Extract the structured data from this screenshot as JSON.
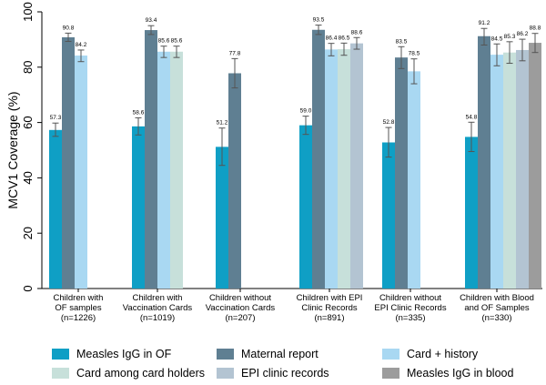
{
  "chart_data": {
    "type": "bar",
    "ylabel": "MCV1 Coverage (%)",
    "ylim": [
      0,
      100
    ],
    "yticks": [
      0,
      20,
      40,
      60,
      80,
      100
    ],
    "categories": [
      [
        "Children with",
        "OF samples",
        "(n=1226)"
      ],
      [
        "Children with",
        "Vaccination Cards",
        "(n=1019)"
      ],
      [
        "Children without",
        "Vaccination Cards",
        "(n=207)"
      ],
      [
        "Children with EPI",
        "Clinic Records",
        "(n=891)"
      ],
      [
        "Children without",
        "EPI Clinic Records",
        "(n=335)"
      ],
      [
        "Children with Blood",
        "and OF Samples",
        "(n=330)"
      ]
    ],
    "series": [
      {
        "name": "Measles IgG in OF",
        "color": "#0f9fc5"
      },
      {
        "name": "Maternal report",
        "color": "#5f7f92"
      },
      {
        "name": "Card + history",
        "color": "#a9d8f2"
      },
      {
        "name": "Card among card holders",
        "color": "#c7e0da"
      },
      {
        "name": "EPI clinic records",
        "color": "#b3c4d2"
      },
      {
        "name": "Measles IgG in blood",
        "color": "#9c9c9c"
      }
    ],
    "groups": [
      {
        "bars": [
          {
            "series": 0,
            "value": 57.3,
            "label": "57.3",
            "ci": [
              55.0,
              59.8
            ]
          },
          {
            "series": 1,
            "value": 90.8,
            "label": "90.8",
            "ci": [
              89.3,
              92.3
            ]
          },
          {
            "series": 2,
            "value": 84.2,
            "label": "84.2",
            "ci": [
              82.0,
              86.2
            ]
          }
        ]
      },
      {
        "bars": [
          {
            "series": 0,
            "value": 58.6,
            "label": "58.6",
            "ci": [
              55.5,
              61.7
            ]
          },
          {
            "series": 1,
            "value": 93.4,
            "label": "93.4",
            "ci": [
              91.8,
              95.0
            ]
          },
          {
            "series": 2,
            "value": 85.6,
            "label": "85.6",
            "ci": [
              83.5,
              87.6
            ]
          },
          {
            "series": 3,
            "value": 85.6,
            "label": "85.6",
            "ci": [
              83.5,
              87.6
            ]
          }
        ]
      },
      {
        "bars": [
          {
            "series": 0,
            "value": 51.2,
            "label": "51.2",
            "ci": [
              44.5,
              58.0
            ]
          },
          {
            "series": 1,
            "value": 77.8,
            "label": "77.8",
            "ci": [
              72.5,
              83.1
            ]
          }
        ]
      },
      {
        "bars": [
          {
            "series": 0,
            "value": 59.0,
            "label": "59.0",
            "ci": [
              55.7,
              62.3
            ]
          },
          {
            "series": 1,
            "value": 93.5,
            "label": "93.5",
            "ci": [
              91.8,
              95.2
            ]
          },
          {
            "series": 2,
            "value": 86.4,
            "label": "86.4",
            "ci": [
              84.1,
              88.6
            ]
          },
          {
            "series": 3,
            "value": 86.5,
            "label": "86.5",
            "ci": [
              84.3,
              88.7
            ]
          },
          {
            "series": 4,
            "value": 88.6,
            "label": "88.6",
            "ci": [
              86.5,
              90.7
            ]
          }
        ]
      },
      {
        "bars": [
          {
            "series": 0,
            "value": 52.8,
            "label": "52.8",
            "ci": [
              47.5,
              58.2
            ]
          },
          {
            "series": 1,
            "value": 83.5,
            "label": "83.5",
            "ci": [
              79.5,
              87.4
            ]
          },
          {
            "series": 2,
            "value": 78.5,
            "label": "78.5",
            "ci": [
              74.0,
              83.0
            ]
          }
        ]
      },
      {
        "bars": [
          {
            "series": 0,
            "value": 54.8,
            "label": "54.8",
            "ci": [
              49.5,
              60.1
            ]
          },
          {
            "series": 1,
            "value": 91.2,
            "label": "91.2",
            "ci": [
              88.0,
              94.0
            ]
          },
          {
            "series": 2,
            "value": 84.5,
            "label": "84.5",
            "ci": [
              80.5,
              88.4
            ]
          },
          {
            "series": 3,
            "value": 85.3,
            "label": "85.3",
            "ci": [
              81.4,
              89.2
            ]
          },
          {
            "series": 4,
            "value": 86.2,
            "label": "86.2",
            "ci": [
              82.3,
              90.1
            ]
          },
          {
            "series": 5,
            "value": 88.8,
            "label": "88.8",
            "ci": [
              85.3,
              92.2
            ]
          }
        ]
      }
    ],
    "grid": false,
    "legend": "bottom"
  }
}
